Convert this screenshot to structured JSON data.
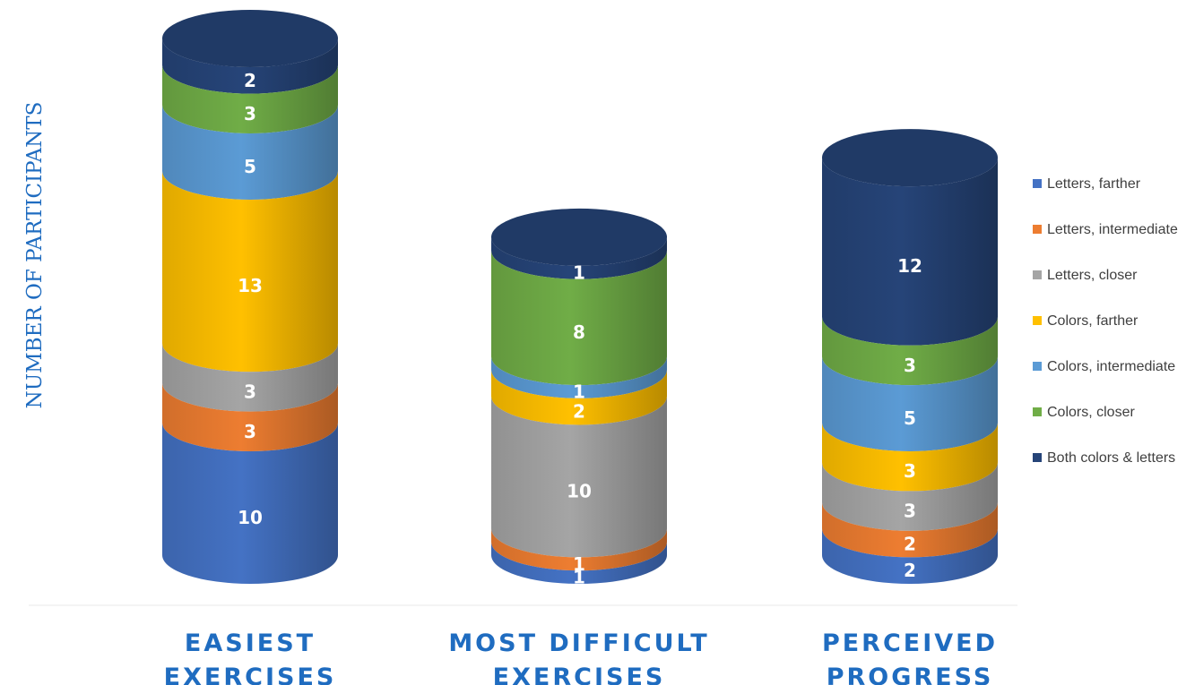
{
  "chart_data": {
    "type": "bar",
    "stacked": true,
    "style": "3d-cylinder",
    "ylabel": "NUMBER OF PARTICIPANTS",
    "xlabel": "",
    "categories": [
      "EASIEST EXERCISES",
      "MOST DIFFICULT EXERCISES",
      "PERCEIVED PROGRESS"
    ],
    "category_lines": [
      [
        "EASIEST",
        "EXERCISES"
      ],
      [
        "MOST DIFFICULT",
        "EXERCISES"
      ],
      [
        "PERCEIVED",
        "PROGRESS"
      ]
    ],
    "series": [
      {
        "name": "Letters, farther",
        "color": "#4472c4",
        "values": [
          10,
          1,
          2
        ]
      },
      {
        "name": "Letters, intermediate",
        "color": "#ed7d31",
        "values": [
          3,
          1,
          2
        ]
      },
      {
        "name": "Letters, closer",
        "color": "#a5a5a5",
        "values": [
          3,
          10,
          3
        ]
      },
      {
        "name": "Colors, farther",
        "color": "#ffc000",
        "values": [
          13,
          2,
          3
        ]
      },
      {
        "name": "Colors, intermediate",
        "color": "#5b9bd5",
        "values": [
          5,
          1,
          5
        ]
      },
      {
        "name": "Colors, closer",
        "color": "#70ad47",
        "values": [
          3,
          8,
          3
        ]
      },
      {
        "name": "Both colors & letters",
        "color": "#264478",
        "values": [
          2,
          1,
          12
        ]
      }
    ],
    "legend": "right",
    "grid": false,
    "data_labels": true
  }
}
